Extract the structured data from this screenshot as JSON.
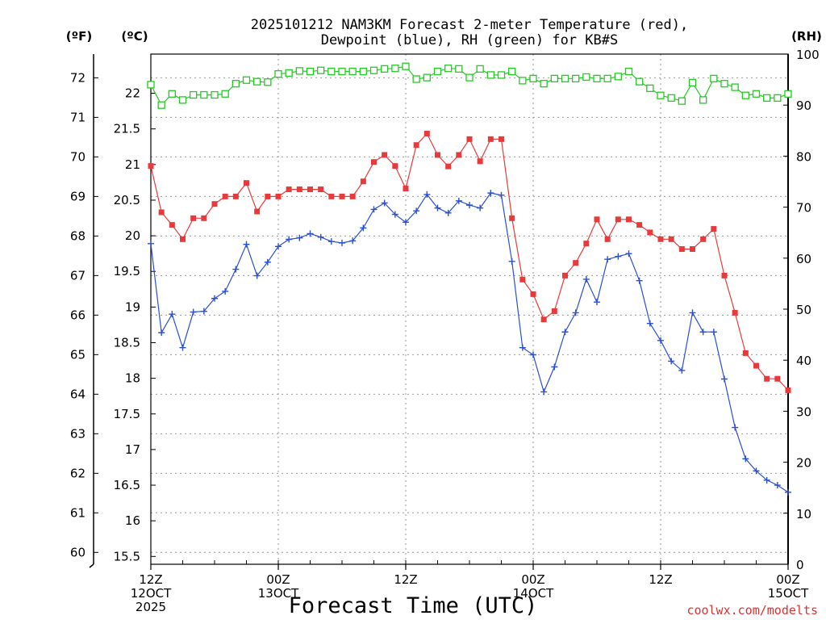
{
  "chart_data": {
    "type": "line",
    "title_line1": "2025101212 NAM3KM Forecast 2-meter Temperature (red),",
    "title_line2": "Dewpoint (blue), RH (green) for KB#S",
    "xlabel": "Forecast Time (UTC)",
    "credit": "coolwx.com/modelts",
    "unit_f": "(ºF)",
    "unit_c": "(ºC)",
    "unit_rh": "(RH)",
    "x_tick_labels": [
      {
        "hour": 0,
        "lines": [
          "12Z",
          "12OCT",
          "2025"
        ]
      },
      {
        "hour": 12,
        "lines": [
          "00Z",
          "13OCT"
        ]
      },
      {
        "hour": 24,
        "lines": [
          "12Z"
        ]
      },
      {
        "hour": 36,
        "lines": [
          "00Z",
          "14OCT"
        ]
      },
      {
        "hour": 48,
        "lines": [
          "12Z"
        ]
      },
      {
        "hour": 60,
        "lines": [
          "00Z",
          "15OCT"
        ]
      }
    ],
    "x_range_hours": [
      0,
      60
    ],
    "f_axis": {
      "range": [
        59.7,
        72.6
      ],
      "ticks": [
        "60",
        "61",
        "62",
        "63",
        "64",
        "65",
        "66",
        "67",
        "68",
        "69",
        "70",
        "71",
        "72"
      ]
    },
    "c_axis": {
      "range": [
        15.39,
        22.55
      ],
      "ticks": [
        "15.5",
        "16",
        "16.5",
        "17",
        "17.5",
        "18",
        "18.5",
        "19",
        "19.5",
        "20",
        "20.5",
        "21",
        "21.5",
        "22"
      ]
    },
    "rh_axis": {
      "range": [
        0,
        100
      ],
      "ticks": [
        "0",
        "10",
        "20",
        "30",
        "40",
        "50",
        "60",
        "70",
        "80",
        "90",
        "100"
      ]
    },
    "grid": true,
    "colors": {
      "temperature": "#e83a3a",
      "dewpoint": "#2a4fd8",
      "rh": "#22cc22"
    },
    "series": [
      {
        "name": "Temperature (red)",
        "unit": "F",
        "hours": [
          0,
          1,
          2,
          3,
          4,
          5,
          6,
          7,
          8,
          9,
          10,
          11,
          12,
          13,
          14,
          15,
          16,
          17,
          18,
          19,
          20,
          21,
          22,
          23,
          24,
          25,
          26,
          27,
          28,
          29,
          30,
          31,
          32,
          33,
          34,
          35,
          36,
          37,
          38,
          39,
          40,
          41,
          42,
          43,
          44,
          45,
          46,
          47,
          48,
          49,
          50,
          51,
          52,
          53,
          54,
          55,
          56,
          57,
          58,
          59,
          60
        ],
        "values": [
          69.77,
          68.6,
          68.28,
          67.92,
          68.45,
          68.45,
          68.81,
          69.0,
          69.0,
          69.34,
          68.62,
          69.0,
          69.0,
          69.18,
          69.18,
          69.18,
          69.18,
          69.0,
          69.0,
          69.0,
          69.38,
          69.87,
          70.05,
          69.77,
          69.2,
          70.3,
          70.59,
          70.05,
          69.76,
          70.05,
          70.45,
          69.89,
          70.45,
          70.45,
          68.45,
          66.9,
          66.53,
          65.89,
          66.1,
          67.0,
          67.32,
          67.81,
          68.42,
          67.92,
          68.42,
          68.42,
          68.28,
          68.09,
          67.92,
          67.92,
          67.67,
          67.67,
          67.92,
          68.18,
          67.0,
          66.06,
          65.04,
          64.72,
          64.39,
          64.39,
          64.1
        ]
      },
      {
        "name": "Dewpoint (blue)",
        "unit": "C",
        "hours": [
          0,
          1,
          2,
          3,
          4,
          5,
          6,
          7,
          8,
          9,
          10,
          11,
          12,
          13,
          14,
          15,
          16,
          17,
          18,
          19,
          20,
          21,
          22,
          23,
          24,
          25,
          26,
          27,
          28,
          29,
          30,
          31,
          32,
          33,
          34,
          35,
          36,
          37,
          38,
          39,
          40,
          41,
          42,
          43,
          44,
          45,
          46,
          47,
          48,
          49,
          50,
          51,
          52,
          53,
          54,
          55,
          56,
          57,
          58,
          59,
          60
        ],
        "values": [
          19.89,
          18.64,
          18.9,
          18.43,
          18.93,
          18.94,
          19.12,
          19.22,
          19.53,
          19.88,
          19.44,
          19.63,
          19.85,
          19.95,
          19.97,
          20.03,
          19.98,
          19.92,
          19.9,
          19.93,
          20.11,
          20.37,
          20.46,
          20.3,
          20.19,
          20.35,
          20.58,
          20.39,
          20.32,
          20.49,
          20.43,
          20.39,
          20.6,
          20.57,
          19.64,
          18.43,
          18.33,
          17.81,
          18.16,
          18.65,
          18.92,
          19.39,
          19.07,
          19.67,
          19.71,
          19.75,
          19.37,
          18.77,
          18.53,
          18.24,
          18.11,
          18.92,
          18.65,
          18.65,
          17.99,
          17.31,
          16.87,
          16.7,
          16.57,
          16.5,
          16.4
        ]
      },
      {
        "name": "RH (green)",
        "unit": "%",
        "hours": [
          0,
          1,
          2,
          3,
          4,
          5,
          6,
          7,
          8,
          9,
          10,
          11,
          12,
          13,
          14,
          15,
          16,
          17,
          18,
          19,
          20,
          21,
          22,
          23,
          24,
          25,
          26,
          27,
          28,
          29,
          30,
          31,
          32,
          33,
          34,
          35,
          36,
          37,
          38,
          39,
          40,
          41,
          42,
          43,
          44,
          45,
          46,
          47,
          48,
          49,
          50,
          51,
          52,
          53,
          54,
          55,
          56,
          57,
          58,
          59,
          60
        ],
        "values": [
          94,
          90,
          92.2,
          91,
          92,
          92,
          92,
          92.2,
          94.2,
          94.9,
          94.6,
          94.5,
          96.1,
          96.3,
          96.7,
          96.6,
          96.8,
          96.6,
          96.6,
          96.6,
          96.6,
          96.8,
          97.1,
          97.2,
          97.6,
          95.1,
          95.4,
          96.6,
          97.2,
          97.1,
          95.4,
          97.1,
          95.9,
          95.9,
          96.6,
          94.8,
          95.2,
          94.2,
          95.2,
          95.2,
          95.2,
          95.5,
          95.2,
          95.2,
          95.6,
          96.6,
          94.6,
          93.3,
          91.9,
          91.4,
          90.8,
          94.4,
          91.0,
          95.2,
          94.2,
          93.5,
          91.9,
          92.2,
          91.4,
          91.4,
          92.2
        ]
      }
    ]
  }
}
